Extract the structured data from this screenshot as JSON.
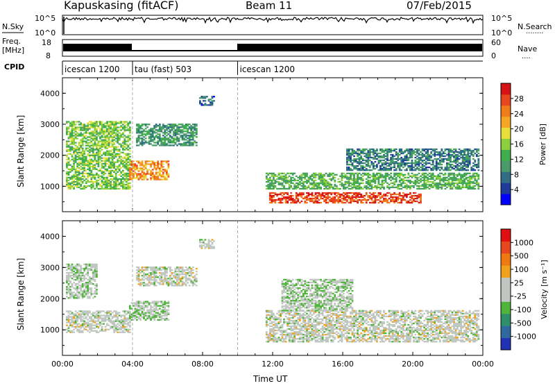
{
  "header": {
    "site": "Kapuskasing (fitACF)",
    "beam": "Beam 11",
    "date": "07/Feb/2015"
  },
  "panels": {
    "nsky": {
      "left_label": "N.Sky",
      "left_ticks": [
        "10^5",
        "10^0"
      ],
      "right_ticks": [
        "10^5",
        "10^0"
      ],
      "right_label": "N.Search",
      "right_dots": "........"
    },
    "freq": {
      "left_label_1": "Freq.",
      "left_label_2": "[MHz]",
      "left_ticks": [
        "18",
        "8"
      ],
      "right_ticks": [
        "60",
        "0"
      ],
      "right_label": "Nave",
      "right_dots": "...."
    },
    "cpid": {
      "label": "CPID",
      "segments": [
        {
          "label": "icescan 1200",
          "start": 0,
          "end": 4
        },
        {
          "label": "tau (fast) 503",
          "start": 4,
          "end": 10
        },
        {
          "label": "icescan 1200",
          "start": 10,
          "end": 24
        }
      ]
    }
  },
  "x_axis": {
    "label": "Time UT",
    "ticks": [
      "00:00",
      "04:00",
      "08:00",
      "12:00",
      "16:00",
      "20:00",
      "00:00"
    ],
    "range_hours": [
      0,
      24
    ]
  },
  "y_axis": {
    "label": "Slant Range [km]",
    "ticks": [
      "4000",
      "3000",
      "2000",
      "1000"
    ],
    "range_km": [
      180,
      4500
    ]
  },
  "colorbars": {
    "power": {
      "label": "Power [dB]",
      "ticks": [
        "28",
        "24",
        "20",
        "16",
        "12",
        "8",
        "4"
      ],
      "colors": [
        "#0000ff",
        "#1e3c9a",
        "#2f6e85",
        "#4a9a6a",
        "#3fae4b",
        "#8cd13c",
        "#e8e03a",
        "#f5a623",
        "#f07c1c",
        "#e8461e",
        "#d61414"
      ]
    },
    "velocity": {
      "label": "Velocity [m s⁻¹]",
      "ticks": [
        "1000",
        "500",
        "100",
        "25",
        "-25",
        "-100",
        "-500",
        "-1000"
      ],
      "colors": [
        "#2232b4",
        "#2e6a9e",
        "#2f8f6a",
        "#4fb43a",
        "#bfc7c0",
        "#bfc7c0",
        "#f0a21c",
        "#ef7a12",
        "#e8461e",
        "#e01010"
      ]
    }
  },
  "chart_data": [
    {
      "type": "heatmap",
      "title": "Power [dB]",
      "xlabel": "Time UT",
      "ylabel": "Slant Range [km]",
      "x_range": [
        0,
        24
      ],
      "y_range": [
        180,
        4500
      ],
      "color_range": [
        0,
        30
      ],
      "regions": [
        {
          "t0": 0.2,
          "t1": 3.9,
          "r0": 900,
          "r1": 3100,
          "value": 14
        },
        {
          "t0": 3.8,
          "t1": 6.0,
          "r0": 1200,
          "r1": 1800,
          "value": 22
        },
        {
          "t0": 4.2,
          "t1": 7.6,
          "r0": 2300,
          "r1": 3000,
          "value": 10
        },
        {
          "t0": 7.8,
          "t1": 8.6,
          "r0": 3600,
          "r1": 3900,
          "value": 6
        },
        {
          "t0": 11.6,
          "t1": 23.8,
          "r0": 900,
          "r1": 1400,
          "value": 12
        },
        {
          "t0": 11.8,
          "t1": 20.5,
          "r0": 450,
          "r1": 800,
          "value": 26
        },
        {
          "t0": 16.2,
          "t1": 23.8,
          "r0": 1500,
          "r1": 2200,
          "value": 8
        }
      ]
    },
    {
      "type": "heatmap",
      "title": "Velocity [m s⁻¹]",
      "xlabel": "Time UT",
      "ylabel": "Slant Range [km]",
      "x_range": [
        0,
        24
      ],
      "y_range": [
        180,
        4500
      ],
      "color_range": [
        -1000,
        1000
      ],
      "regions": [
        {
          "t0": 0.2,
          "t1": 3.9,
          "r0": 900,
          "r1": 1600,
          "value": 0
        },
        {
          "t0": 0.2,
          "t1": 2.0,
          "r0": 2000,
          "r1": 3100,
          "value": -100
        },
        {
          "t0": 3.8,
          "t1": 6.0,
          "r0": 1300,
          "r1": 1900,
          "value": -150
        },
        {
          "t0": 4.2,
          "t1": 7.6,
          "r0": 2400,
          "r1": 3000,
          "value": 0
        },
        {
          "t0": 7.8,
          "t1": 8.6,
          "r0": 3600,
          "r1": 3900,
          "value": 0
        },
        {
          "t0": 11.6,
          "t1": 23.8,
          "r0": 600,
          "r1": 1600,
          "value": 0
        },
        {
          "t0": 12.5,
          "t1": 16.5,
          "r0": 1600,
          "r1": 2600,
          "value": -120
        }
      ]
    }
  ]
}
